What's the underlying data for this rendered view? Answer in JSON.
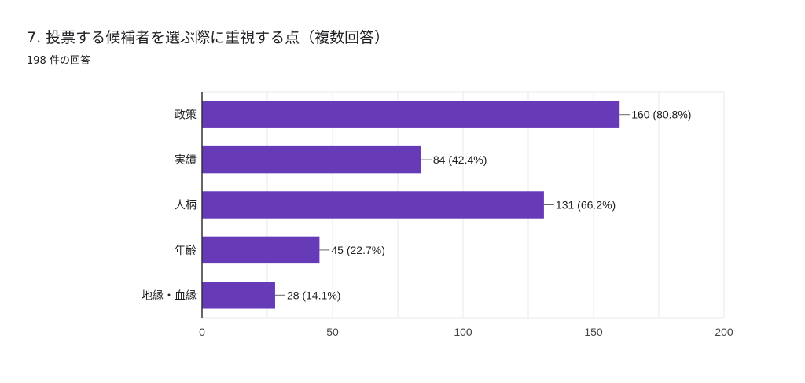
{
  "header": {
    "title": "7. 投票する候補者を選ぶ際に重視する点（複数回答）",
    "response_count": "198 件の回答"
  },
  "colors": {
    "bar": "#673ab7",
    "grid": "#e9e9e9",
    "axis": "#333333",
    "text": "#202124"
  },
  "chart_data": {
    "type": "bar",
    "orientation": "horizontal",
    "categories": [
      "政策",
      "実績",
      "人柄",
      "年齢",
      "地縁・血縁"
    ],
    "values": [
      160,
      84,
      131,
      45,
      28
    ],
    "data_labels": [
      "160 (80.8%)",
      "84 (42.4%)",
      "131 (66.2%)",
      "45 (22.7%)",
      "28 (14.1%)"
    ],
    "xlim": [
      0,
      200
    ],
    "xticks": [
      0,
      50,
      100,
      150,
      200
    ],
    "grid": true,
    "legend": "none"
  }
}
